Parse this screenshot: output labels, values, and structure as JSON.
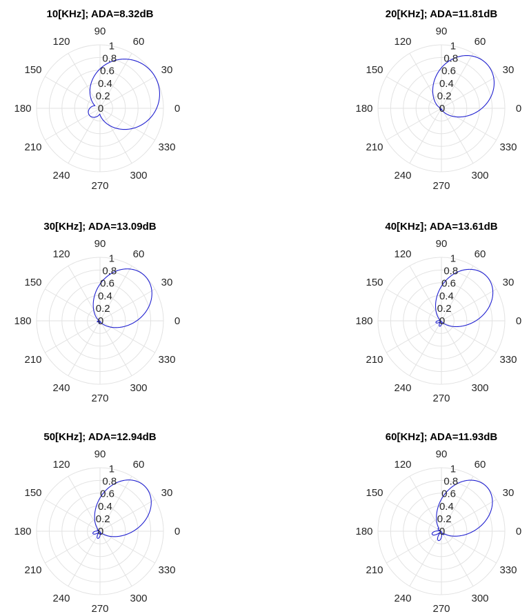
{
  "figure": {
    "rows": 3,
    "cols": 2
  },
  "chart_data": [
    {
      "type": "polar-line",
      "title": "10[KHz]; ADA=8.32dB",
      "r_ticks": [
        "0",
        "0.2",
        "0.4",
        "0.6",
        "0.8",
        "1"
      ],
      "r_range": [
        0,
        1
      ],
      "theta_ticks": [
        "0",
        "30",
        "60",
        "90",
        "120",
        "150",
        "180",
        "210",
        "240",
        "270",
        "300",
        "330"
      ],
      "grid": true,
      "line_color": "#1f1fd0",
      "pattern": {
        "main_dir_deg": 30,
        "main_width": 0.55,
        "back_level": 0.2,
        "lobe_level": 0.0
      }
    },
    {
      "type": "polar-line",
      "title": "20[KHz]; ADA=11.81dB",
      "r_ticks": [
        "0",
        "0.2",
        "0.4",
        "0.6",
        "0.8",
        "1"
      ],
      "r_range": [
        0,
        1
      ],
      "theta_ticks": [
        "0",
        "30",
        "60",
        "90",
        "120",
        "150",
        "180",
        "210",
        "240",
        "270",
        "300",
        "330"
      ],
      "grid": true,
      "line_color": "#1f1fd0",
      "pattern": {
        "main_dir_deg": 45,
        "main_width": 0.42,
        "back_level": 0.02,
        "lobe_level": 0.03
      }
    },
    {
      "type": "polar-line",
      "title": "30[KHz]; ADA=13.09dB",
      "r_ticks": [
        "0",
        "0.2",
        "0.4",
        "0.6",
        "0.8",
        "1"
      ],
      "r_range": [
        0,
        1
      ],
      "theta_ticks": [
        "0",
        "30",
        "60",
        "90",
        "120",
        "150",
        "180",
        "210",
        "240",
        "270",
        "300",
        "330"
      ],
      "grid": true,
      "line_color": "#1f1fd0",
      "pattern": {
        "main_dir_deg": 45,
        "main_width": 0.38,
        "back_level": 0.01,
        "lobe_level": 0.05
      }
    },
    {
      "type": "polar-line",
      "title": "40[KHz]; ADA=13.61dB",
      "r_ticks": [
        "0",
        "0.2",
        "0.4",
        "0.6",
        "0.8",
        "1"
      ],
      "r_range": [
        0,
        1
      ],
      "theta_ticks": [
        "0",
        "30",
        "60",
        "90",
        "120",
        "150",
        "180",
        "210",
        "240",
        "270",
        "300",
        "330"
      ],
      "grid": true,
      "line_color": "#1f1fd0",
      "pattern": {
        "main_dir_deg": 45,
        "main_width": 0.36,
        "back_level": 0.01,
        "lobe_level": 0.1
      }
    },
    {
      "type": "polar-line",
      "title": "50[KHz]; ADA=12.94dB",
      "r_ticks": [
        "0",
        "0.2",
        "0.4",
        "0.6",
        "0.8",
        "1"
      ],
      "r_range": [
        0,
        1
      ],
      "theta_ticks": [
        "0",
        "30",
        "60",
        "90",
        "120",
        "150",
        "180",
        "210",
        "240",
        "270",
        "300",
        "330"
      ],
      "grid": true,
      "line_color": "#1f1fd0",
      "pattern": {
        "main_dir_deg": 45,
        "main_width": 0.35,
        "back_level": 0.01,
        "lobe_level": 0.13
      }
    },
    {
      "type": "polar-line",
      "title": "60[KHz]; ADA=11.93dB",
      "r_ticks": [
        "0",
        "0.2",
        "0.4",
        "0.6",
        "0.8",
        "1"
      ],
      "r_range": [
        0,
        1
      ],
      "theta_ticks": [
        "0",
        "30",
        "60",
        "90",
        "120",
        "150",
        "180",
        "210",
        "240",
        "270",
        "300",
        "330"
      ],
      "grid": true,
      "line_color": "#1f1fd0",
      "pattern": {
        "main_dir_deg": 45,
        "main_width": 0.34,
        "back_level": 0.01,
        "lobe_level": 0.17
      }
    }
  ]
}
